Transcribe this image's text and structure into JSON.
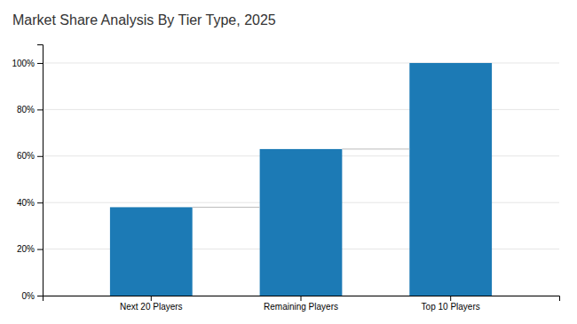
{
  "chart_data": {
    "type": "bar",
    "title": "Market Share Analysis By Tier Type, 2025",
    "categories": [
      "Next 20 Players",
      "Remaining Players",
      "Top 10 Players"
    ],
    "values": [
      38,
      63,
      100
    ],
    "color": "#1c7ab5",
    "ylim": [
      0,
      108
    ],
    "yticks": [
      {
        "value": 0,
        "label": "0%"
      },
      {
        "value": 20,
        "label": "20%"
      },
      {
        "value": 40,
        "label": "40%"
      },
      {
        "value": 60,
        "label": "60%"
      },
      {
        "value": 80,
        "label": "80%"
      },
      {
        "value": 100,
        "label": "100%"
      }
    ],
    "grid": true
  }
}
